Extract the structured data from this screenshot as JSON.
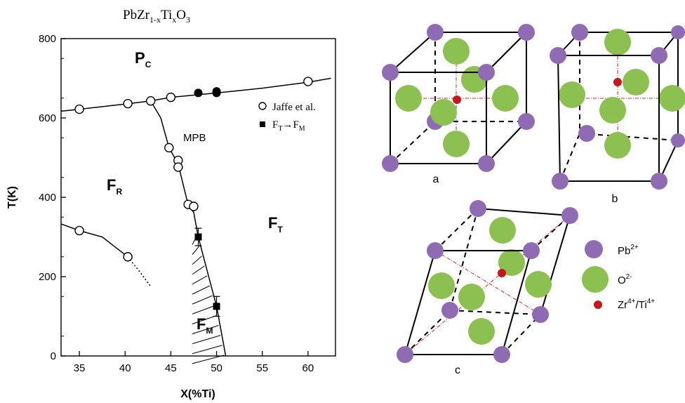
{
  "figure": {
    "title_base": "PbZr",
    "title_sub1": "1-x",
    "title_mid": "Ti",
    "title_sub2": "x",
    "title_end": "O",
    "title_sub3": "3"
  },
  "chart_data": {
    "type": "scatter",
    "xlabel": "X(%Ti)",
    "ylabel": "T(K)",
    "xlim": [
      33,
      63
    ],
    "ylim": [
      0,
      800
    ],
    "xticks": [
      35,
      40,
      45,
      50,
      55,
      60
    ],
    "yticks": [
      0,
      200,
      400,
      600,
      800
    ],
    "series": [
      {
        "name": "Jaffe et al.",
        "marker": "open-circle",
        "points": [
          [
            35,
            622
          ],
          [
            40.3,
            636
          ],
          [
            42.8,
            643
          ],
          [
            45,
            652
          ],
          [
            60,
            692
          ],
          [
            44.8,
            525
          ],
          [
            45.8,
            493
          ],
          [
            45.8,
            476
          ],
          [
            46.9,
            382
          ],
          [
            47.5,
            377
          ],
          [
            35,
            316
          ],
          [
            40.3,
            250
          ]
        ]
      },
      {
        "name": "F_T→F_M",
        "marker": "filled-square",
        "points": [
          [
            48,
            300,
            22
          ],
          [
            50,
            125,
            25
          ]
        ]
      },
      {
        "name": "",
        "marker": "filled-circle",
        "points": [
          [
            48,
            663
          ],
          [
            50,
            663
          ],
          [
            50,
            667
          ]
        ]
      }
    ],
    "boundaries": {
      "cubic_transition": [
        [
          33,
          617
        ],
        [
          35,
          622
        ],
        [
          40.3,
          636
        ],
        [
          42.8,
          643
        ],
        [
          45,
          652
        ],
        [
          50,
          663
        ],
        [
          55,
          675
        ],
        [
          60,
          690
        ],
        [
          62.5,
          700
        ]
      ],
      "mpb": [
        [
          42.8,
          643
        ],
        [
          43.9,
          600
        ],
        [
          44.8,
          525
        ],
        [
          45.8,
          484
        ],
        [
          46.9,
          380
        ],
        [
          47.5,
          362
        ],
        [
          48,
          300
        ],
        [
          48.8,
          230
        ],
        [
          50,
          125
        ],
        [
          51,
          0
        ]
      ],
      "rhombohedral_low": [
        [
          33,
          333
        ],
        [
          35,
          316
        ],
        [
          37.5,
          300
        ],
        [
          40.3,
          250
        ]
      ],
      "rhombohedral_dotted": [
        [
          40.3,
          250
        ],
        [
          41.5,
          215
        ],
        [
          42.8,
          175
        ]
      ],
      "hatched_region_top": [
        47.5,
        362
      ]
    },
    "annotations": {
      "pc": "P",
      "pc_sub": "C",
      "fr": "F",
      "fr_sub": "R",
      "ft": "F",
      "ft_sub": "T",
      "fm": "F",
      "fm_sub": "M",
      "mpb": "MPB",
      "legend_jaffe": "Jaffe et al.",
      "legend_ft": "F",
      "legend_ft_sub": "T",
      "legend_arrow": "→F",
      "legend_fm_sub": "M"
    }
  },
  "crystals": {
    "label_a": "a",
    "label_b": "b",
    "label_c": "c"
  },
  "legend": {
    "pb": "Pb",
    "pb_sup": "2+",
    "o": "O",
    "o_sup": "2-",
    "zr": "Zr",
    "zr_sup": "4+",
    "zr_sep": "/Ti",
    "ti_sup": "4+",
    "colors": {
      "pb": "#8e6bb3",
      "o": "#8cc050",
      "zrti": "#c8161d"
    }
  }
}
